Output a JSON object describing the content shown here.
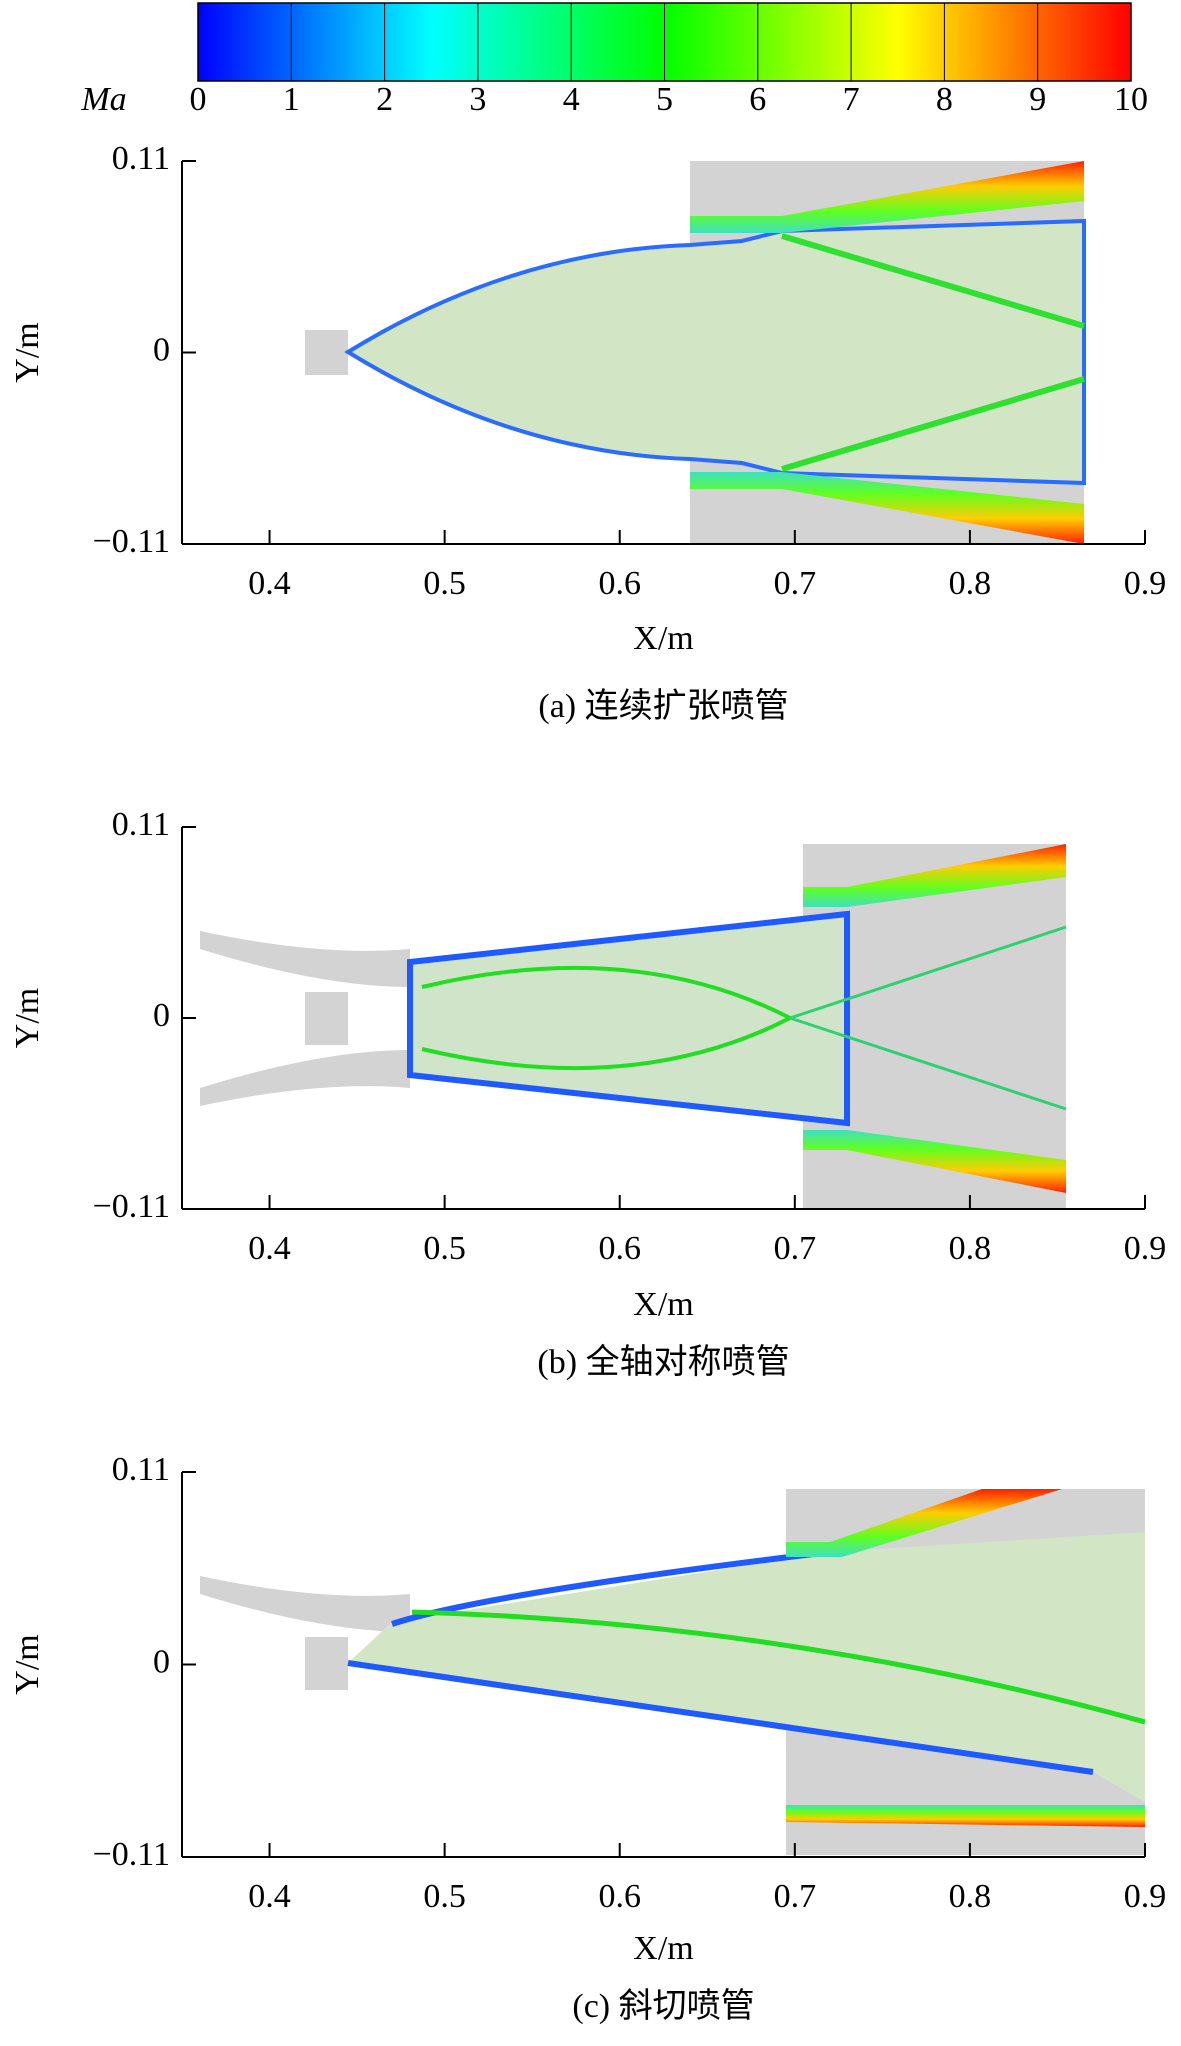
{
  "chart_data": [
    {
      "type": "colorbar",
      "label": "Ma",
      "lim": [
        0,
        10
      ],
      "ticks": [
        0,
        1,
        2,
        3,
        4,
        5,
        6,
        7,
        8,
        9,
        10
      ],
      "colormap": [
        "#0000ff",
        "#00ffff",
        "#00ff00",
        "#ffff00",
        "#ff0000"
      ]
    },
    {
      "type": "contour",
      "caption": "(a) 连续扩张喷管",
      "x_label": "X/m",
      "y_label": "Y/m",
      "xlim": [
        0.35,
        0.9
      ],
      "ylim": [
        -0.11,
        0.11
      ],
      "xticks": [
        0.4,
        0.5,
        0.6,
        0.7,
        0.8,
        0.9
      ],
      "yticks": [
        {
          "value": -0.11,
          "label": "−0.11"
        },
        0,
        0.11
      ]
    },
    {
      "type": "contour",
      "caption": "(b) 全轴对称喷管",
      "x_label": "X/m",
      "y_label": "Y/m",
      "xlim": [
        0.35,
        0.9
      ],
      "ylim": [
        -0.11,
        0.11
      ],
      "xticks": [
        0.4,
        0.5,
        0.6,
        0.7,
        0.8,
        0.9
      ],
      "yticks": [
        {
          "value": -0.11,
          "label": "−0.11"
        },
        0,
        0.11
      ]
    },
    {
      "type": "contour",
      "caption": "(c) 斜切喷管",
      "x_label": "X/m",
      "y_label": "Y/m",
      "xlim": [
        0.35,
        0.9
      ],
      "ylim": [
        -0.11,
        0.11
      ],
      "xticks": [
        0.4,
        0.5,
        0.6,
        0.7,
        0.8,
        0.9
      ],
      "yticks": [
        {
          "value": -0.11,
          "label": "−0.11"
        },
        0,
        0.11
      ]
    }
  ]
}
